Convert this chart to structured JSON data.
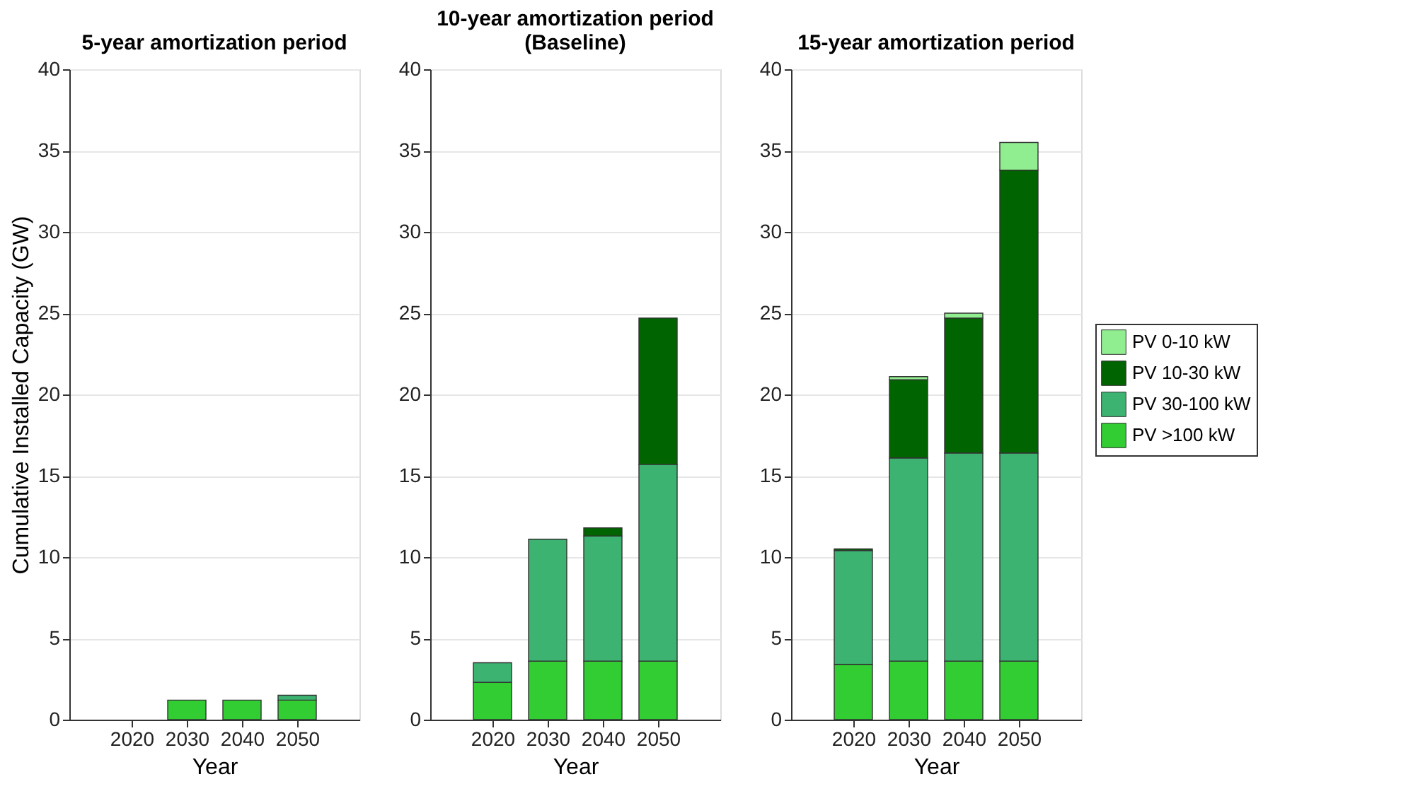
{
  "chart_data": [
    {
      "type": "bar",
      "stacked": true,
      "title": "5-year amortization period",
      "xlabel": "Year",
      "ylabel": "Cumulative Installed Capacity (GW)",
      "categories": [
        "2020",
        "2030",
        "2040",
        "2050"
      ],
      "ylim": [
        0,
        40
      ],
      "yticks": [
        0,
        5,
        10,
        15,
        20,
        25,
        30,
        35,
        40
      ],
      "grid": "y",
      "series": [
        {
          "color": "#32cd32",
          "values": [
            null,
            1.2,
            1.2,
            1.2
          ]
        },
        {
          "color": "#3cb371",
          "values": [
            null,
            null,
            null,
            0.3
          ]
        }
      ]
    },
    {
      "type": "bar",
      "stacked": true,
      "title": "10-year amortization period\n(Baseline)",
      "xlabel": "Year",
      "categories": [
        "2020",
        "2030",
        "2040",
        "2050"
      ],
      "ylim": [
        0,
        40
      ],
      "yticks": [
        0,
        5,
        10,
        15,
        20,
        25,
        30,
        35,
        40
      ],
      "grid": "y",
      "series": [
        {
          "color": "#32cd32",
          "values": [
            2.3,
            3.6,
            3.6,
            3.6
          ]
        },
        {
          "color": "#3cb371",
          "values": [
            1.2,
            7.5,
            7.7,
            12.1
          ]
        },
        {
          "color": "#006400",
          "values": [
            null,
            null,
            0.5,
            9.0
          ]
        }
      ]
    },
    {
      "type": "bar",
      "stacked": true,
      "title": "15-year amortization period",
      "xlabel": "Year",
      "categories": [
        "2020",
        "2030",
        "2040",
        "2050"
      ],
      "ylim": [
        0,
        40
      ],
      "yticks": [
        0,
        5,
        10,
        15,
        20,
        25,
        30,
        35,
        40
      ],
      "grid": "y",
      "legend": "right",
      "series": [
        {
          "name": "PV >100 kW",
          "color": "#32cd32",
          "values": [
            3.4,
            3.6,
            3.6,
            3.6
          ]
        },
        {
          "name": "PV 30-100 kW",
          "color": "#3cb371",
          "values": [
            7.0,
            12.5,
            12.8,
            12.8
          ]
        },
        {
          "name": "PV 10-30 kW",
          "color": "#006400",
          "values": [
            0.1,
            4.8,
            8.3,
            17.4
          ]
        },
        {
          "name": "PV 0-10 kW",
          "color": "#90ee90",
          "values": [
            null,
            0.2,
            0.3,
            1.7
          ]
        }
      ]
    }
  ]
}
